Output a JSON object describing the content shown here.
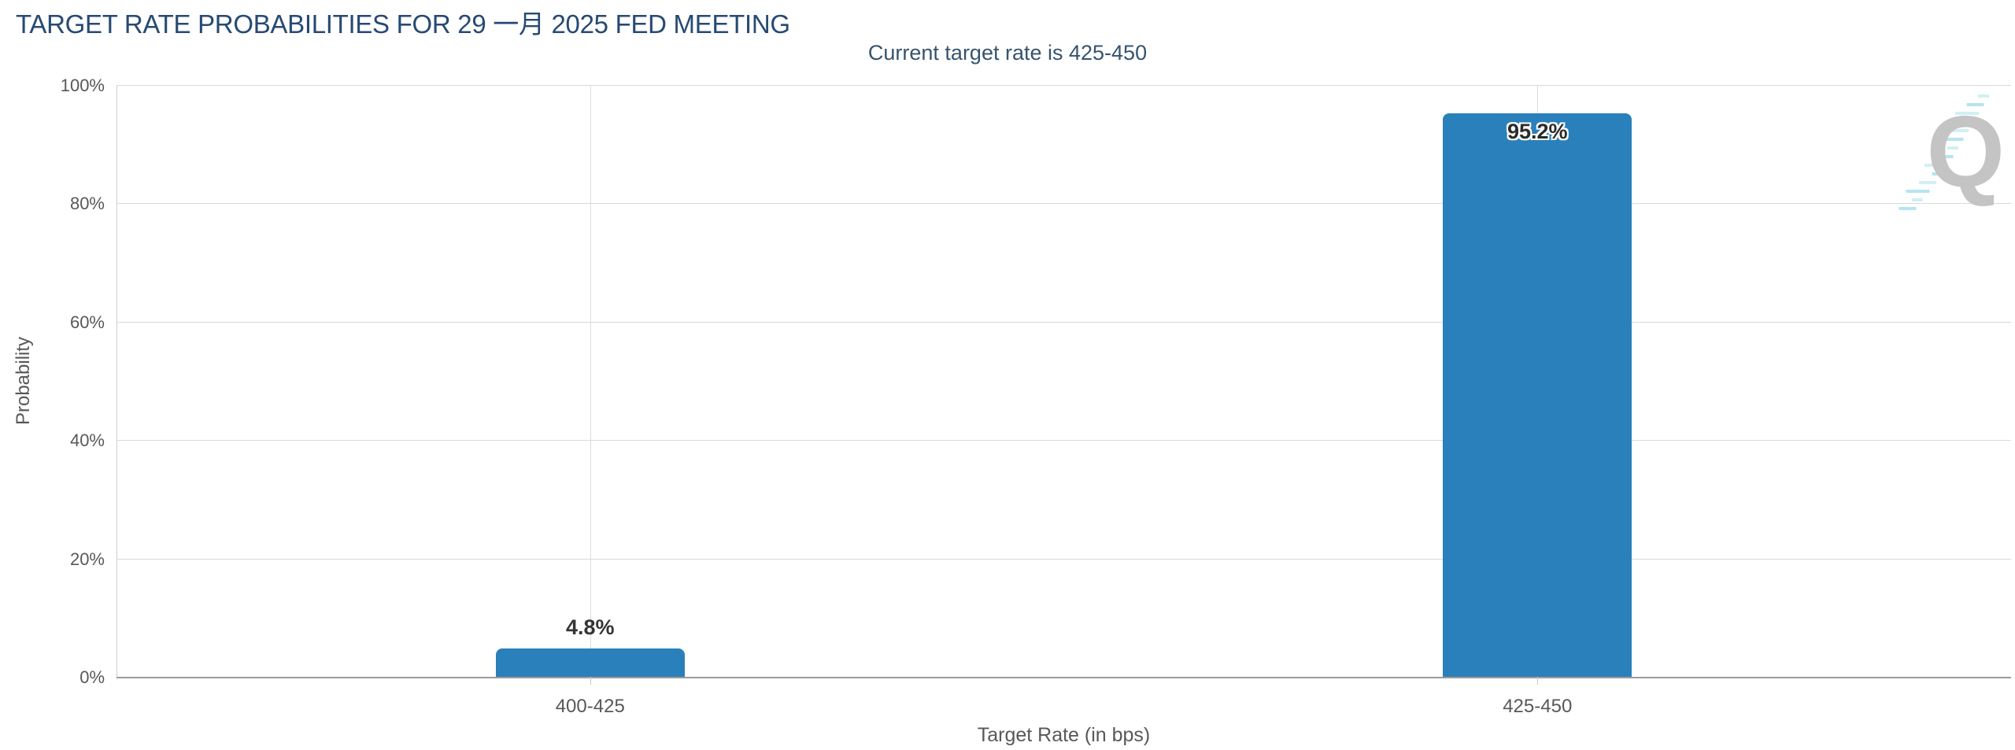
{
  "header": {
    "title": "TARGET RATE PROBABILITIES FOR 29 一月 2025 FED MEETING",
    "subtitle": "Current target rate is 425-450"
  },
  "menu": {
    "icon": "hamburger-menu-icon"
  },
  "watermark": {
    "letter": "Q",
    "icon": "quikstrike-logo-watermark",
    "q_color": "#c4c4c4",
    "dash_color": "#aee3ee"
  },
  "chart_data": {
    "type": "bar",
    "title": "TARGET RATE PROBABILITIES FOR 29 一月 2025 FED MEETING",
    "subtitle": "Current target rate is 425-450",
    "categories": [
      "400-425",
      "425-450"
    ],
    "values": [
      4.8,
      95.2
    ],
    "value_labels": [
      "4.8%",
      "95.2%"
    ],
    "label_inside": [
      false,
      true
    ],
    "xlabel": "Target Rate (in bps)",
    "ylabel": "Probability",
    "ylim": [
      0,
      100
    ],
    "ytick_labels": [
      "0%",
      "20%",
      "40%",
      "60%",
      "80%",
      "100%"
    ],
    "grid": "horizontal gridlines every 20% plus vertical gridline at each category center",
    "legend": "none",
    "bar_color": "#2a80ba",
    "grid_color": "#d9d9d9",
    "axis_line_color": "#9b9b9b",
    "label_color": "#58585a"
  }
}
